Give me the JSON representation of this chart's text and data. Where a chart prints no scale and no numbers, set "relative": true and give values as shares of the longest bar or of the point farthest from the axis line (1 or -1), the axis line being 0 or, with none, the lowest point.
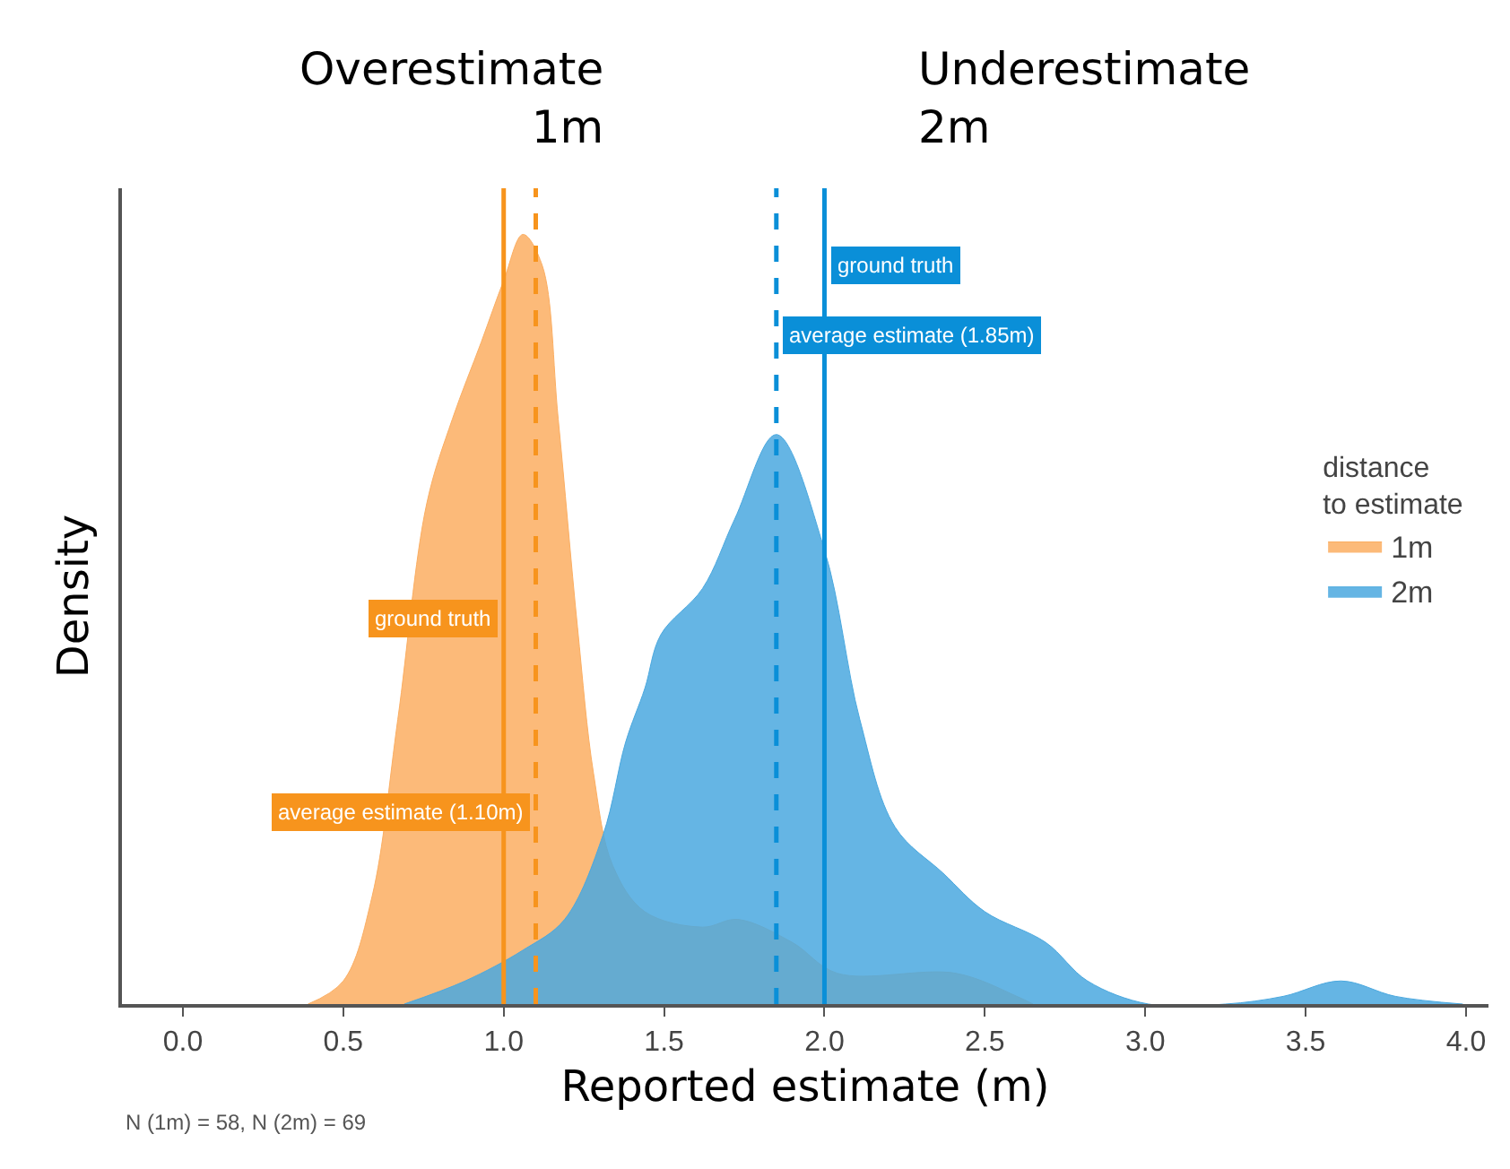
{
  "chart_data": {
    "type": "area",
    "relative": true,
    "xlabel": "Reported estimate (m)",
    "ylabel": "Density",
    "legend_title": "distance\nto estimate",
    "legend": "right",
    "tick_labels": "x",
    "xlim": [
      -0.19,
      4.07
    ],
    "xticks": [
      {
        "value": 0,
        "label": "0.0"
      },
      {
        "value": 0.5,
        "label": "0.5"
      },
      {
        "value": 1,
        "label": "1.0"
      },
      {
        "value": 1.5,
        "label": "1.5"
      },
      {
        "value": 2,
        "label": "2.0"
      },
      {
        "value": 2.5,
        "label": "2.5"
      },
      {
        "value": 3,
        "label": "3.0"
      },
      {
        "value": 3.5,
        "label": "3.5"
      },
      {
        "value": 4,
        "label": "4.0"
      }
    ],
    "series": [
      {
        "name": "1m",
        "color": "#fbae62",
        "x": [
          0.39,
          0.5,
          0.59,
          0.67,
          0.76,
          0.84,
          0.93,
          1.0,
          1.06,
          1.12,
          1.17,
          1.23,
          1.28,
          1.34,
          1.44,
          1.62,
          1.73,
          1.9,
          2.04,
          2.41,
          2.6,
          2.65
        ],
        "values": [
          0,
          0.03,
          0.14,
          0.37,
          0.65,
          0.76,
          0.86,
          0.94,
          1.0,
          0.96,
          0.76,
          0.49,
          0.3,
          0.18,
          0.12,
          0.1,
          0.11,
          0.08,
          0.04,
          0.04,
          0.01,
          0
        ]
      },
      {
        "name": "2m",
        "color": "#4aa8df",
        "x": [
          0.69,
          0.88,
          1.06,
          1.19,
          1.31,
          1.38,
          1.44,
          1.49,
          1.62,
          1.72,
          1.85,
          2.0,
          2.11,
          2.22,
          2.37,
          2.5,
          2.69,
          2.82,
          3.01,
          3.25,
          3.43,
          3.61,
          3.78,
          3.99
        ],
        "values": [
          0,
          0.03,
          0.07,
          0.11,
          0.22,
          0.34,
          0.41,
          0.48,
          0.54,
          0.63,
          0.74,
          0.59,
          0.37,
          0.23,
          0.17,
          0.12,
          0.08,
          0.03,
          0,
          0,
          0.01,
          0.03,
          0.01,
          0
        ]
      }
    ],
    "ref_lines": [
      {
        "axis": "x",
        "value": 1.0,
        "label": "ground truth",
        "color": "#f7941d",
        "line_style": "solid"
      },
      {
        "axis": "x",
        "value": 1.1,
        "label": "average estimate (1.10m)",
        "color": "#f7941d",
        "line_style": "dashed"
      },
      {
        "axis": "x",
        "value": 2.0,
        "label": "ground truth",
        "color": "#0a8fd8",
        "line_style": "solid"
      },
      {
        "axis": "x",
        "value": 1.85,
        "label": "average estimate (1.85m)",
        "color": "#0a8fd8",
        "line_style": "dashed"
      }
    ],
    "annotations": [
      "Overestimate\n1m",
      "Underestimate\n2m",
      "N (1m) = 58, N (2m) = 69"
    ]
  }
}
